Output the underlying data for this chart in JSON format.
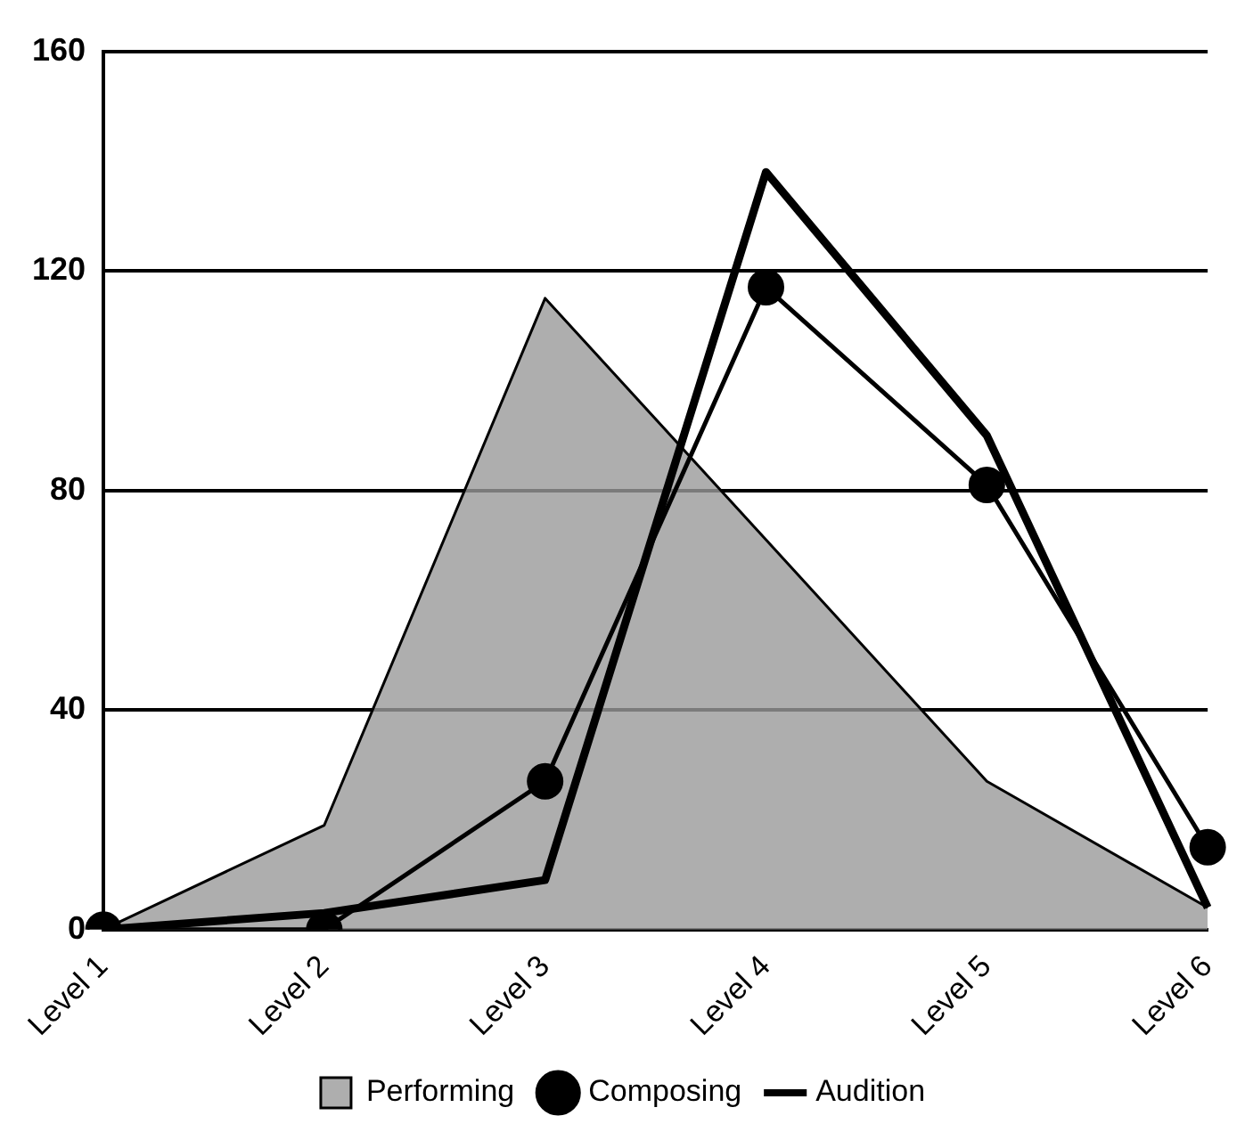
{
  "chart_data": {
    "type": "line",
    "categories": [
      "Level 1",
      "Level 2",
      "Level 3",
      "Level 4",
      "Level 5",
      "Level 6"
    ],
    "series": [
      {
        "name": "Performing",
        "type": "area",
        "color": "#9a9a9a",
        "values": [
          0,
          19,
          115,
          71,
          27,
          4
        ]
      },
      {
        "name": "Composing",
        "type": "line",
        "color": "#000000",
        "marker": "circle",
        "values": [
          0,
          0,
          27,
          117,
          81,
          15
        ]
      },
      {
        "name": "Audition",
        "type": "line",
        "color": "#000000",
        "marker": "none",
        "values": [
          0,
          3,
          9,
          138,
          90,
          4
        ]
      }
    ],
    "ylim": [
      0,
      160
    ],
    "yticks": [
      0,
      40,
      80,
      120,
      160
    ],
    "grid": "y",
    "legend": "bottom"
  }
}
